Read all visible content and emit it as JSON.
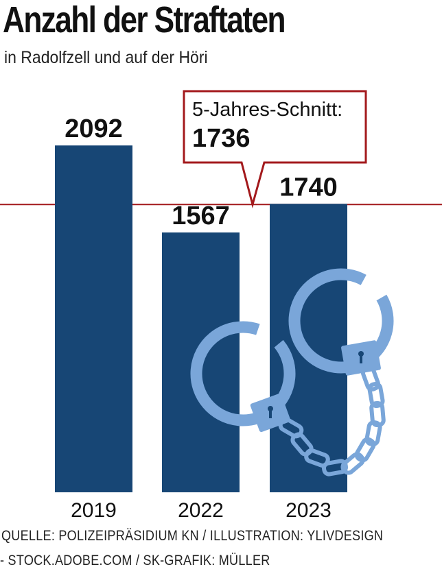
{
  "title": "Anzahl der Straftaten",
  "subtitle": "in Radolfzell und auf der Höri",
  "chart_data": {
    "type": "bar",
    "categories": [
      "2019",
      "2022",
      "2023"
    ],
    "values": [
      2092,
      1567,
      1740
    ],
    "value_labels": [
      "2092",
      "1567",
      "1740"
    ],
    "average": {
      "label": "5-Jahres-Schnitt:",
      "value": 1736,
      "value_label": "1736"
    },
    "colors": {
      "bar": "#174675",
      "average_line": "#a3191c",
      "illustration": "#7aa6d9"
    },
    "illustration": "handcuffs-icon"
  },
  "source": {
    "line1": "QUELLE: POLIZEIPRÄSIDIUM KN / ILLUSTRATION: YLIVDESIGN",
    "line2": "- STOCK.ADOBE.COM / SK-GRAFIK: MÜLLER"
  }
}
